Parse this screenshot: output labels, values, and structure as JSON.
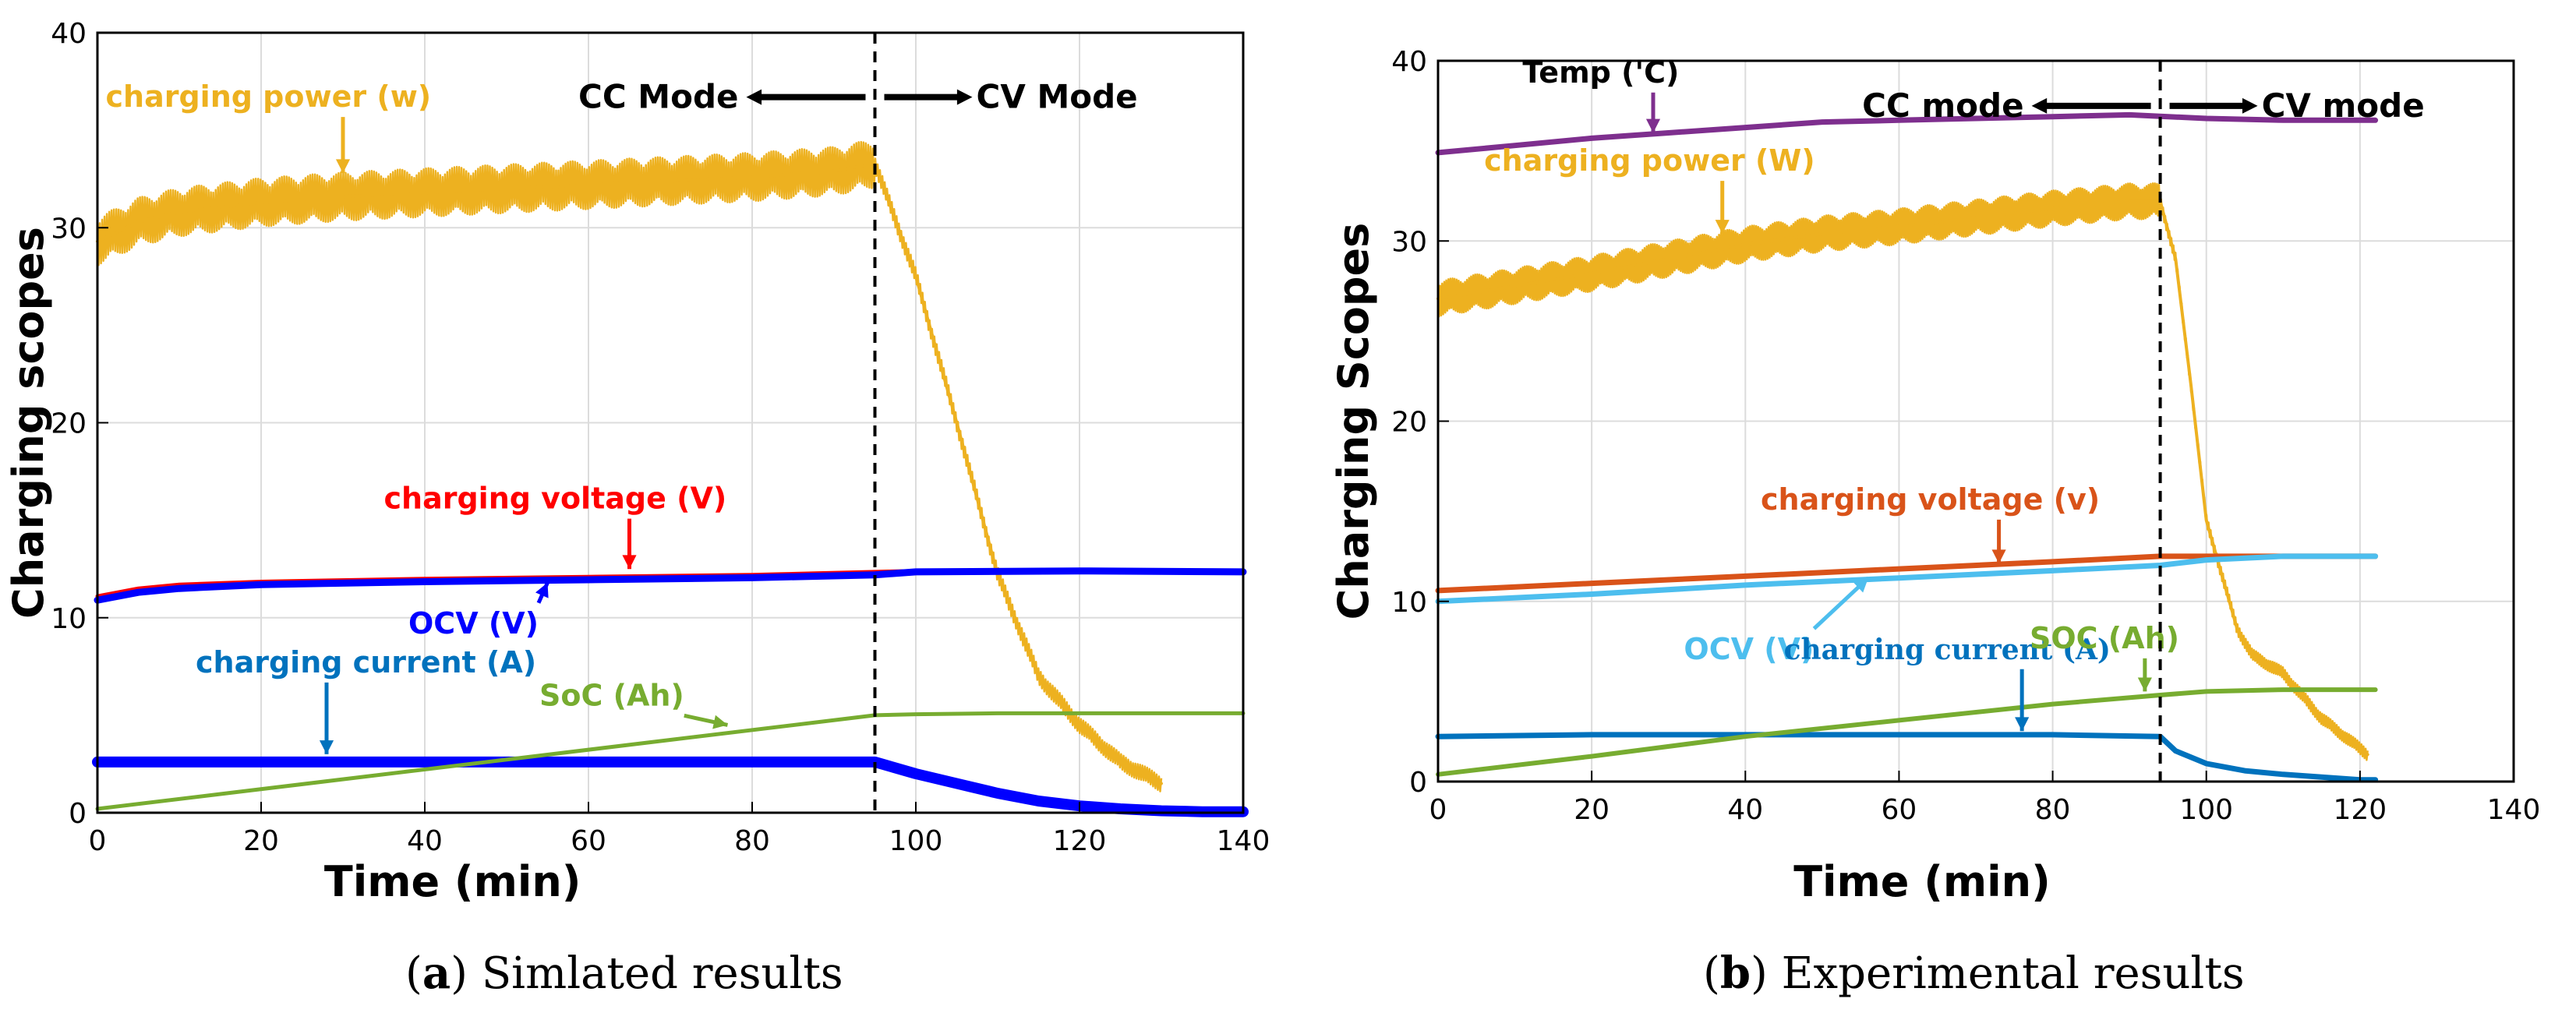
{
  "chart_data": [
    {
      "id": "a",
      "type": "line",
      "caption_letter": "a",
      "caption_text": "Simlated results",
      "xlabel": "Time (min)",
      "ylabel": "Charging scopes",
      "xlim": [
        0,
        140
      ],
      "ylim": [
        0,
        40
      ],
      "xticks": [
        0,
        20,
        40,
        60,
        80,
        100,
        120,
        140
      ],
      "yticks": [
        0,
        10,
        20,
        30,
        40
      ],
      "grid": true,
      "mode_line_x": 95,
      "mode_labels": {
        "left": "CC Mode",
        "right": "CV Mode",
        "y": 36.7
      },
      "series": [
        {
          "name": "charging power (w)",
          "color": "#edb120",
          "width": 4,
          "band_width": 2.5,
          "x": [
            0,
            5,
            10,
            20,
            30,
            40,
            50,
            60,
            70,
            80,
            90,
            95,
            100,
            105,
            110,
            115,
            120,
            125,
            130
          ],
          "y": [
            29.3,
            30.3,
            30.8,
            31.3,
            31.6,
            31.8,
            32.0,
            32.2,
            32.4,
            32.6,
            32.9,
            33.3,
            27.5,
            20.0,
            12.2,
            7.0,
            4.5,
            2.6,
            1.5
          ]
        },
        {
          "name": "charging voltage (V)",
          "color": "#ff0000",
          "width": 5,
          "x": [
            0,
            5,
            10,
            20,
            40,
            60,
            80,
            95,
            100,
            120,
            140
          ],
          "y": [
            11.1,
            11.5,
            11.7,
            11.85,
            12.0,
            12.1,
            12.2,
            12.35,
            12.4,
            12.4,
            12.4
          ]
        },
        {
          "name": "OCV (V)",
          "color": "#0000ff",
          "width": 9,
          "x": [
            0,
            5,
            10,
            20,
            40,
            60,
            80,
            95,
            100,
            120,
            140
          ],
          "y": [
            10.9,
            11.3,
            11.5,
            11.7,
            11.85,
            11.95,
            12.05,
            12.2,
            12.35,
            12.4,
            12.35
          ]
        },
        {
          "name": "charging current (A)",
          "color": "#0000ff",
          "width": 14,
          "x": [
            0,
            95,
            100,
            105,
            110,
            115,
            120,
            125,
            130,
            135,
            140
          ],
          "y": [
            2.6,
            2.6,
            2.0,
            1.5,
            1.0,
            0.6,
            0.35,
            0.2,
            0.1,
            0.05,
            0.05
          ]
        },
        {
          "name": "SoC (Ah)",
          "color": "#77ac30",
          "width": 5,
          "x": [
            0,
            95,
            100,
            110,
            120,
            130,
            140
          ],
          "y": [
            0.2,
            5.0,
            5.05,
            5.1,
            5.1,
            5.1,
            5.1
          ]
        }
      ],
      "annotations": [
        {
          "text": "charging power (w)",
          "color": "#edb120",
          "tx": 1,
          "ty": 36.2,
          "ax": 30,
          "ay": 32.8
        },
        {
          "text": "charging voltage (V)",
          "color": "#ff0000",
          "tx": 35,
          "ty": 15.6,
          "ax": 65,
          "ay": 12.5
        },
        {
          "text": "OCV (V)",
          "color": "#0000ff",
          "tx": 38,
          "ty": 9.2,
          "ax": 55,
          "ay": 11.8
        },
        {
          "text": "charging current (A)",
          "color": "#0072bd",
          "tx": 12,
          "ty": 7.2,
          "ax": 28,
          "ay": 3.0
        },
        {
          "text": "SoC (Ah)",
          "color": "#77ac30",
          "tx": 54,
          "ty": 5.5,
          "ax": 77,
          "ay": 4.5
        }
      ]
    },
    {
      "id": "b",
      "type": "line",
      "caption_letter": "b",
      "caption_text": "Experimental results",
      "xlabel": "Time (min)",
      "ylabel": "Charging Scopes",
      "xlim": [
        0,
        140
      ],
      "ylim": [
        0,
        40
      ],
      "xticks": [
        0,
        20,
        40,
        60,
        80,
        100,
        120,
        140
      ],
      "yticks": [
        0,
        10,
        20,
        30,
        40
      ],
      "grid": true,
      "mode_line_x": 94,
      "mode_labels": {
        "left": "CC mode",
        "right": "CV mode",
        "y": 37.5
      },
      "series": [
        {
          "name": "Temp ('C)",
          "color": "#7e2f8e",
          "width": 7,
          "x": [
            0,
            10,
            20,
            30,
            40,
            50,
            60,
            70,
            80,
            90,
            100,
            110,
            122
          ],
          "y": [
            34.9,
            35.3,
            35.7,
            36.0,
            36.3,
            36.6,
            36.7,
            36.8,
            36.9,
            37.0,
            36.8,
            36.7,
            36.7
          ]
        },
        {
          "name": "charging power (W)",
          "color": "#edb120",
          "width": 4,
          "band_width": 2.0,
          "x": [
            0,
            10,
            20,
            30,
            40,
            50,
            60,
            70,
            80,
            90,
            94,
            96,
            98,
            100,
            102,
            104,
            106,
            108,
            110,
            112,
            115,
            118,
            121
          ],
          "y": [
            26.8,
            27.5,
            28.2,
            29.0,
            29.8,
            30.4,
            30.8,
            31.3,
            31.8,
            32.2,
            32.2,
            29.0,
            22.0,
            14.5,
            11.5,
            8.5,
            7.0,
            6.5,
            6.0,
            5.0,
            3.5,
            2.5,
            1.5
          ]
        },
        {
          "name": "charging voltage (v)",
          "color": "#d95319",
          "width": 7,
          "x": [
            0,
            20,
            40,
            60,
            80,
            94,
            100,
            110,
            122
          ],
          "y": [
            10.6,
            11.0,
            11.4,
            11.8,
            12.2,
            12.5,
            12.5,
            12.5,
            12.5
          ]
        },
        {
          "name": "OCV (V)",
          "color": "#4dbeee",
          "width": 7,
          "x": [
            0,
            20,
            40,
            60,
            80,
            94,
            100,
            110,
            122
          ],
          "y": [
            10.0,
            10.4,
            10.9,
            11.3,
            11.7,
            12.0,
            12.3,
            12.5,
            12.5
          ]
        },
        {
          "name": "charging current (A)",
          "color": "#0072bd",
          "width": 7,
          "x": [
            0,
            20,
            40,
            60,
            80,
            94,
            96,
            100,
            105,
            110,
            115,
            120,
            122
          ],
          "y": [
            2.5,
            2.6,
            2.6,
            2.6,
            2.6,
            2.5,
            1.7,
            1.0,
            0.6,
            0.4,
            0.25,
            0.1,
            0.1
          ]
        },
        {
          "name": "SOC (Ah)",
          "color": "#77ac30",
          "width": 6,
          "x": [
            0,
            20,
            40,
            60,
            80,
            94,
            100,
            110,
            122
          ],
          "y": [
            0.4,
            1.4,
            2.5,
            3.4,
            4.3,
            4.8,
            5.0,
            5.1,
            5.1
          ]
        }
      ],
      "annotations": [
        {
          "text": "Temp ('C)",
          "color": "#000000",
          "tx": 11,
          "ty": 38.8,
          "ax": 28,
          "ay": 36.0
        },
        {
          "text": "charging power (W)",
          "color": "#edb120",
          "tx": 6,
          "ty": 33.9,
          "ax": 37,
          "ay": 30.4
        },
        {
          "text": "charging voltage (v)",
          "color": "#d95319",
          "tx": 42,
          "ty": 15.1,
          "ax": 73,
          "ay": 12.1
        },
        {
          "text": "OCV (V)",
          "color": "#4dbeee",
          "tx": 32,
          "ty": 6.8,
          "ax": 56,
          "ay": 11.3
        },
        {
          "text": "charging current (A)",
          "color": "#0072bd",
          "tx": 45,
          "ty": 6.8,
          "ax": 76,
          "ay": 2.8
        },
        {
          "text": "SOC (Ah)",
          "color": "#77ac30",
          "tx": 77,
          "ty": 7.4,
          "ax": 92,
          "ay": 5.0
        }
      ]
    }
  ]
}
